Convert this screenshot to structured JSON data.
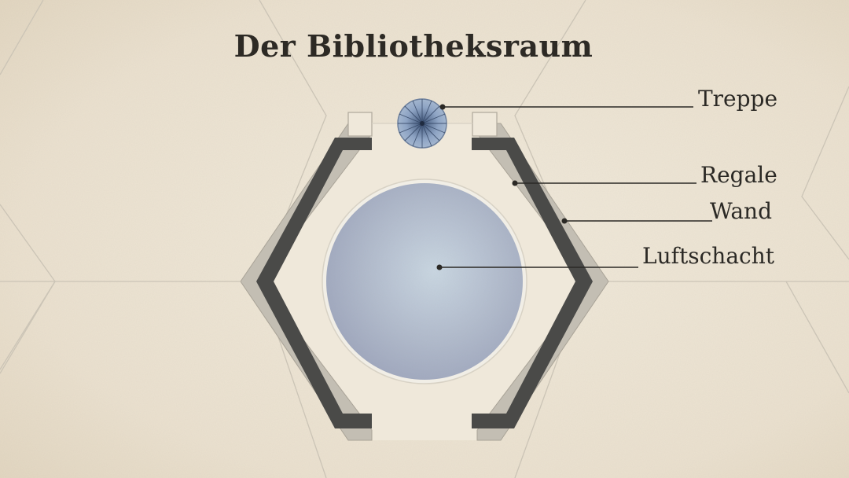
{
  "diagram": {
    "title": "Der Bibliotheksraum",
    "labels": {
      "stairs": "Treppe",
      "shelves": "Regale",
      "wall": "Wand",
      "air_shaft": "Luftschacht"
    },
    "colors": {
      "paper": "#ece3d2",
      "grid_line": "#cfc8ba",
      "floor": "#efe8da",
      "wall_outer": "#c2bdb2",
      "shelf_dark": "#4a4a48",
      "shaft_fill": "#aeb6c8",
      "shaft_rim": "#efece4",
      "stairs_fill": "#8ea4c4",
      "ink": "#2b2925"
    }
  }
}
